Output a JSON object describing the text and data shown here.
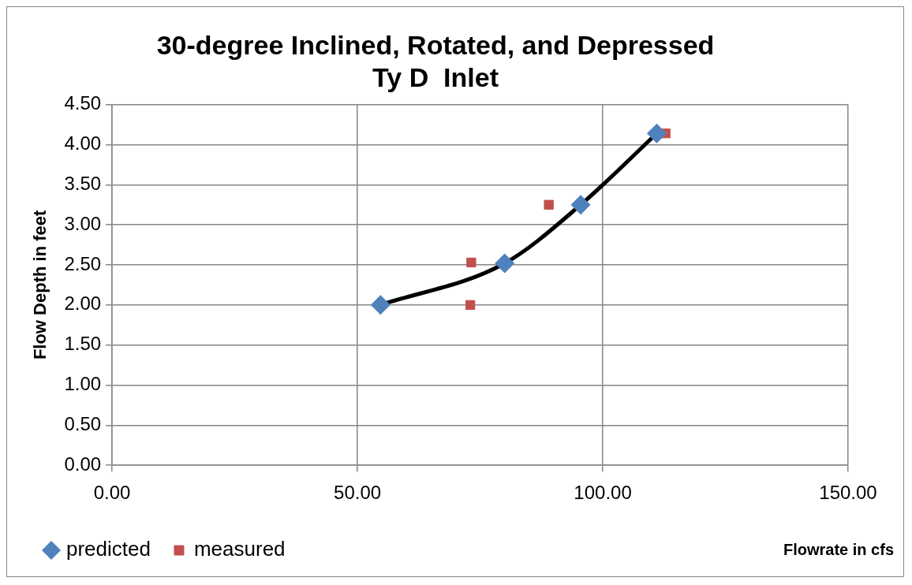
{
  "chart_data": {
    "type": "line",
    "title": [
      "30-degree Inclined, Rotated, and Depressed",
      "Ty D  Inlet"
    ],
    "xlabel": "Flowrate in cfs",
    "ylabel": "Flow Depth in feet",
    "xlim": [
      0,
      150
    ],
    "xticks": [
      {
        "value": 0,
        "label": "0.00"
      },
      {
        "value": 50,
        "label": "50.00"
      },
      {
        "value": 100,
        "label": "100.00"
      },
      {
        "value": 150,
        "label": "150.00"
      }
    ],
    "ylim": [
      0,
      4.5
    ],
    "yticks": [
      {
        "value": 0,
        "label": "0.00"
      },
      {
        "value": 0.5,
        "label": "0.50"
      },
      {
        "value": 1,
        "label": "1.00"
      },
      {
        "value": 1.5,
        "label": "1.50"
      },
      {
        "value": 2,
        "label": "2.00"
      },
      {
        "value": 2.5,
        "label": "2.50"
      },
      {
        "value": 3,
        "label": "3.00"
      },
      {
        "value": 3.5,
        "label": "3.50"
      },
      {
        "value": 4,
        "label": "4.00"
      },
      {
        "value": 4.5,
        "label": "4.50"
      }
    ],
    "grid": true,
    "legend": "bottom left",
    "series": [
      {
        "name": "predicted",
        "marker": "diamond",
        "line_style": "solid",
        "color": "#4f81bd",
        "x": [
          54.7,
          80.0,
          95.5,
          111.0
        ],
        "values": [
          2.0,
          2.52,
          3.25,
          4.14
        ]
      },
      {
        "name": "measured",
        "type": "scatter",
        "marker": "square",
        "color": "#c0504d",
        "x": [
          73.2,
          73.0,
          89.0,
          112.8
        ],
        "values": [
          2.53,
          2.0,
          3.25,
          4.14
        ]
      }
    ]
  }
}
